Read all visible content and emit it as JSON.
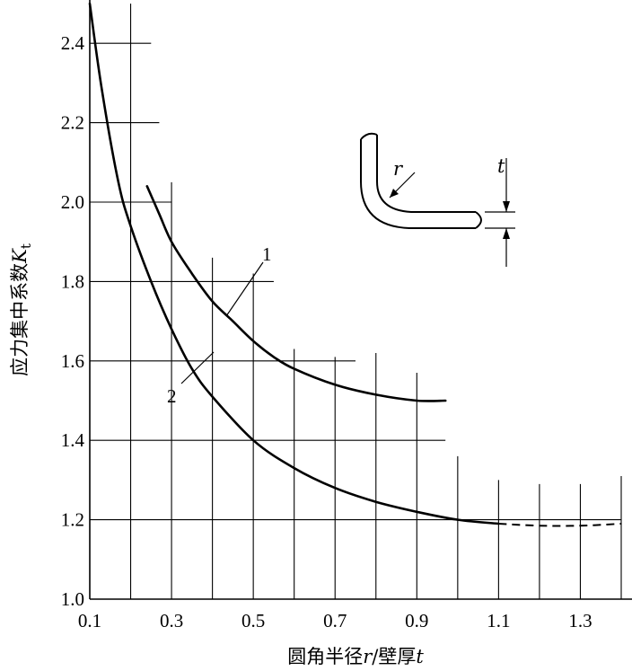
{
  "chart_data": {
    "type": "line",
    "title": "",
    "xlabel_parts": [
      "圆角半径",
      "r",
      "/壁厚",
      "t"
    ],
    "ylabel_parts": [
      "应力集中系数",
      "K",
      "t"
    ],
    "xlim": [
      0.1,
      1.4
    ],
    "ylim": [
      1.0,
      2.5
    ],
    "x_ticks": [
      "0.1",
      "0.3",
      "0.5",
      "0.7",
      "0.9",
      "1.1",
      "1.3"
    ],
    "y_ticks": [
      "1.0",
      "1.2",
      "1.4",
      "1.6",
      "1.8",
      "2.0",
      "2.2",
      "2.4"
    ],
    "series": [
      {
        "name": "1",
        "x": [
          0.24,
          0.27,
          0.3,
          0.35,
          0.4,
          0.45,
          0.5,
          0.55,
          0.6,
          0.7,
          0.8,
          0.9,
          0.97
        ],
        "y": [
          2.04,
          1.97,
          1.9,
          1.82,
          1.75,
          1.7,
          1.65,
          1.61,
          1.58,
          1.54,
          1.515,
          1.5,
          1.5
        ]
      },
      {
        "name": "2",
        "x": [
          0.1,
          0.13,
          0.17,
          0.2,
          0.25,
          0.3,
          0.35,
          0.4,
          0.5,
          0.6,
          0.7,
          0.8,
          0.9,
          1.0,
          1.1
        ],
        "y": [
          2.5,
          2.28,
          2.05,
          1.94,
          1.8,
          1.68,
          1.58,
          1.51,
          1.4,
          1.33,
          1.28,
          1.245,
          1.22,
          1.2,
          1.19
        ]
      },
      {
        "name": "",
        "style": "dashed",
        "x": [
          1.1,
          1.2,
          1.3,
          1.4
        ],
        "y": [
          1.19,
          1.185,
          1.185,
          1.19
        ]
      }
    ],
    "grid_lines": {
      "horizontal": [
        {
          "y": 2.4,
          "x_end": 0.25
        },
        {
          "y": 2.2,
          "x_end": 0.27
        },
        {
          "y": 2.0,
          "x_end": 0.3
        },
        {
          "y": 1.8,
          "x_end": 0.55
        },
        {
          "y": 1.6,
          "x_end": 0.75
        },
        {
          "y": 1.4,
          "x_end": 0.97
        },
        {
          "y": 1.2,
          "x_end": 1.4
        }
      ],
      "vertical": [
        {
          "x": 0.2,
          "y_top": 2.5
        },
        {
          "x": 0.3,
          "y_top": 2.05
        },
        {
          "x": 0.4,
          "y_top": 1.86
        },
        {
          "x": 0.5,
          "y_top": 1.82
        },
        {
          "x": 0.6,
          "y_top": 1.63
        },
        {
          "x": 0.7,
          "y_top": 1.61
        },
        {
          "x": 0.8,
          "y_top": 1.62
        },
        {
          "x": 0.9,
          "y_top": 1.57
        },
        {
          "x": 1.0,
          "y_top": 1.36
        },
        {
          "x": 1.1,
          "y_top": 1.3
        },
        {
          "x": 1.2,
          "y_top": 1.29
        },
        {
          "x": 1.3,
          "y_top": 1.29
        },
        {
          "x": 1.4,
          "y_top": 1.31
        }
      ]
    },
    "curve_labels": [
      {
        "text": "1",
        "series": "1"
      },
      {
        "text": "2",
        "series": "2"
      }
    ],
    "inset_labels": {
      "radius": "r",
      "thickness": "t"
    }
  }
}
